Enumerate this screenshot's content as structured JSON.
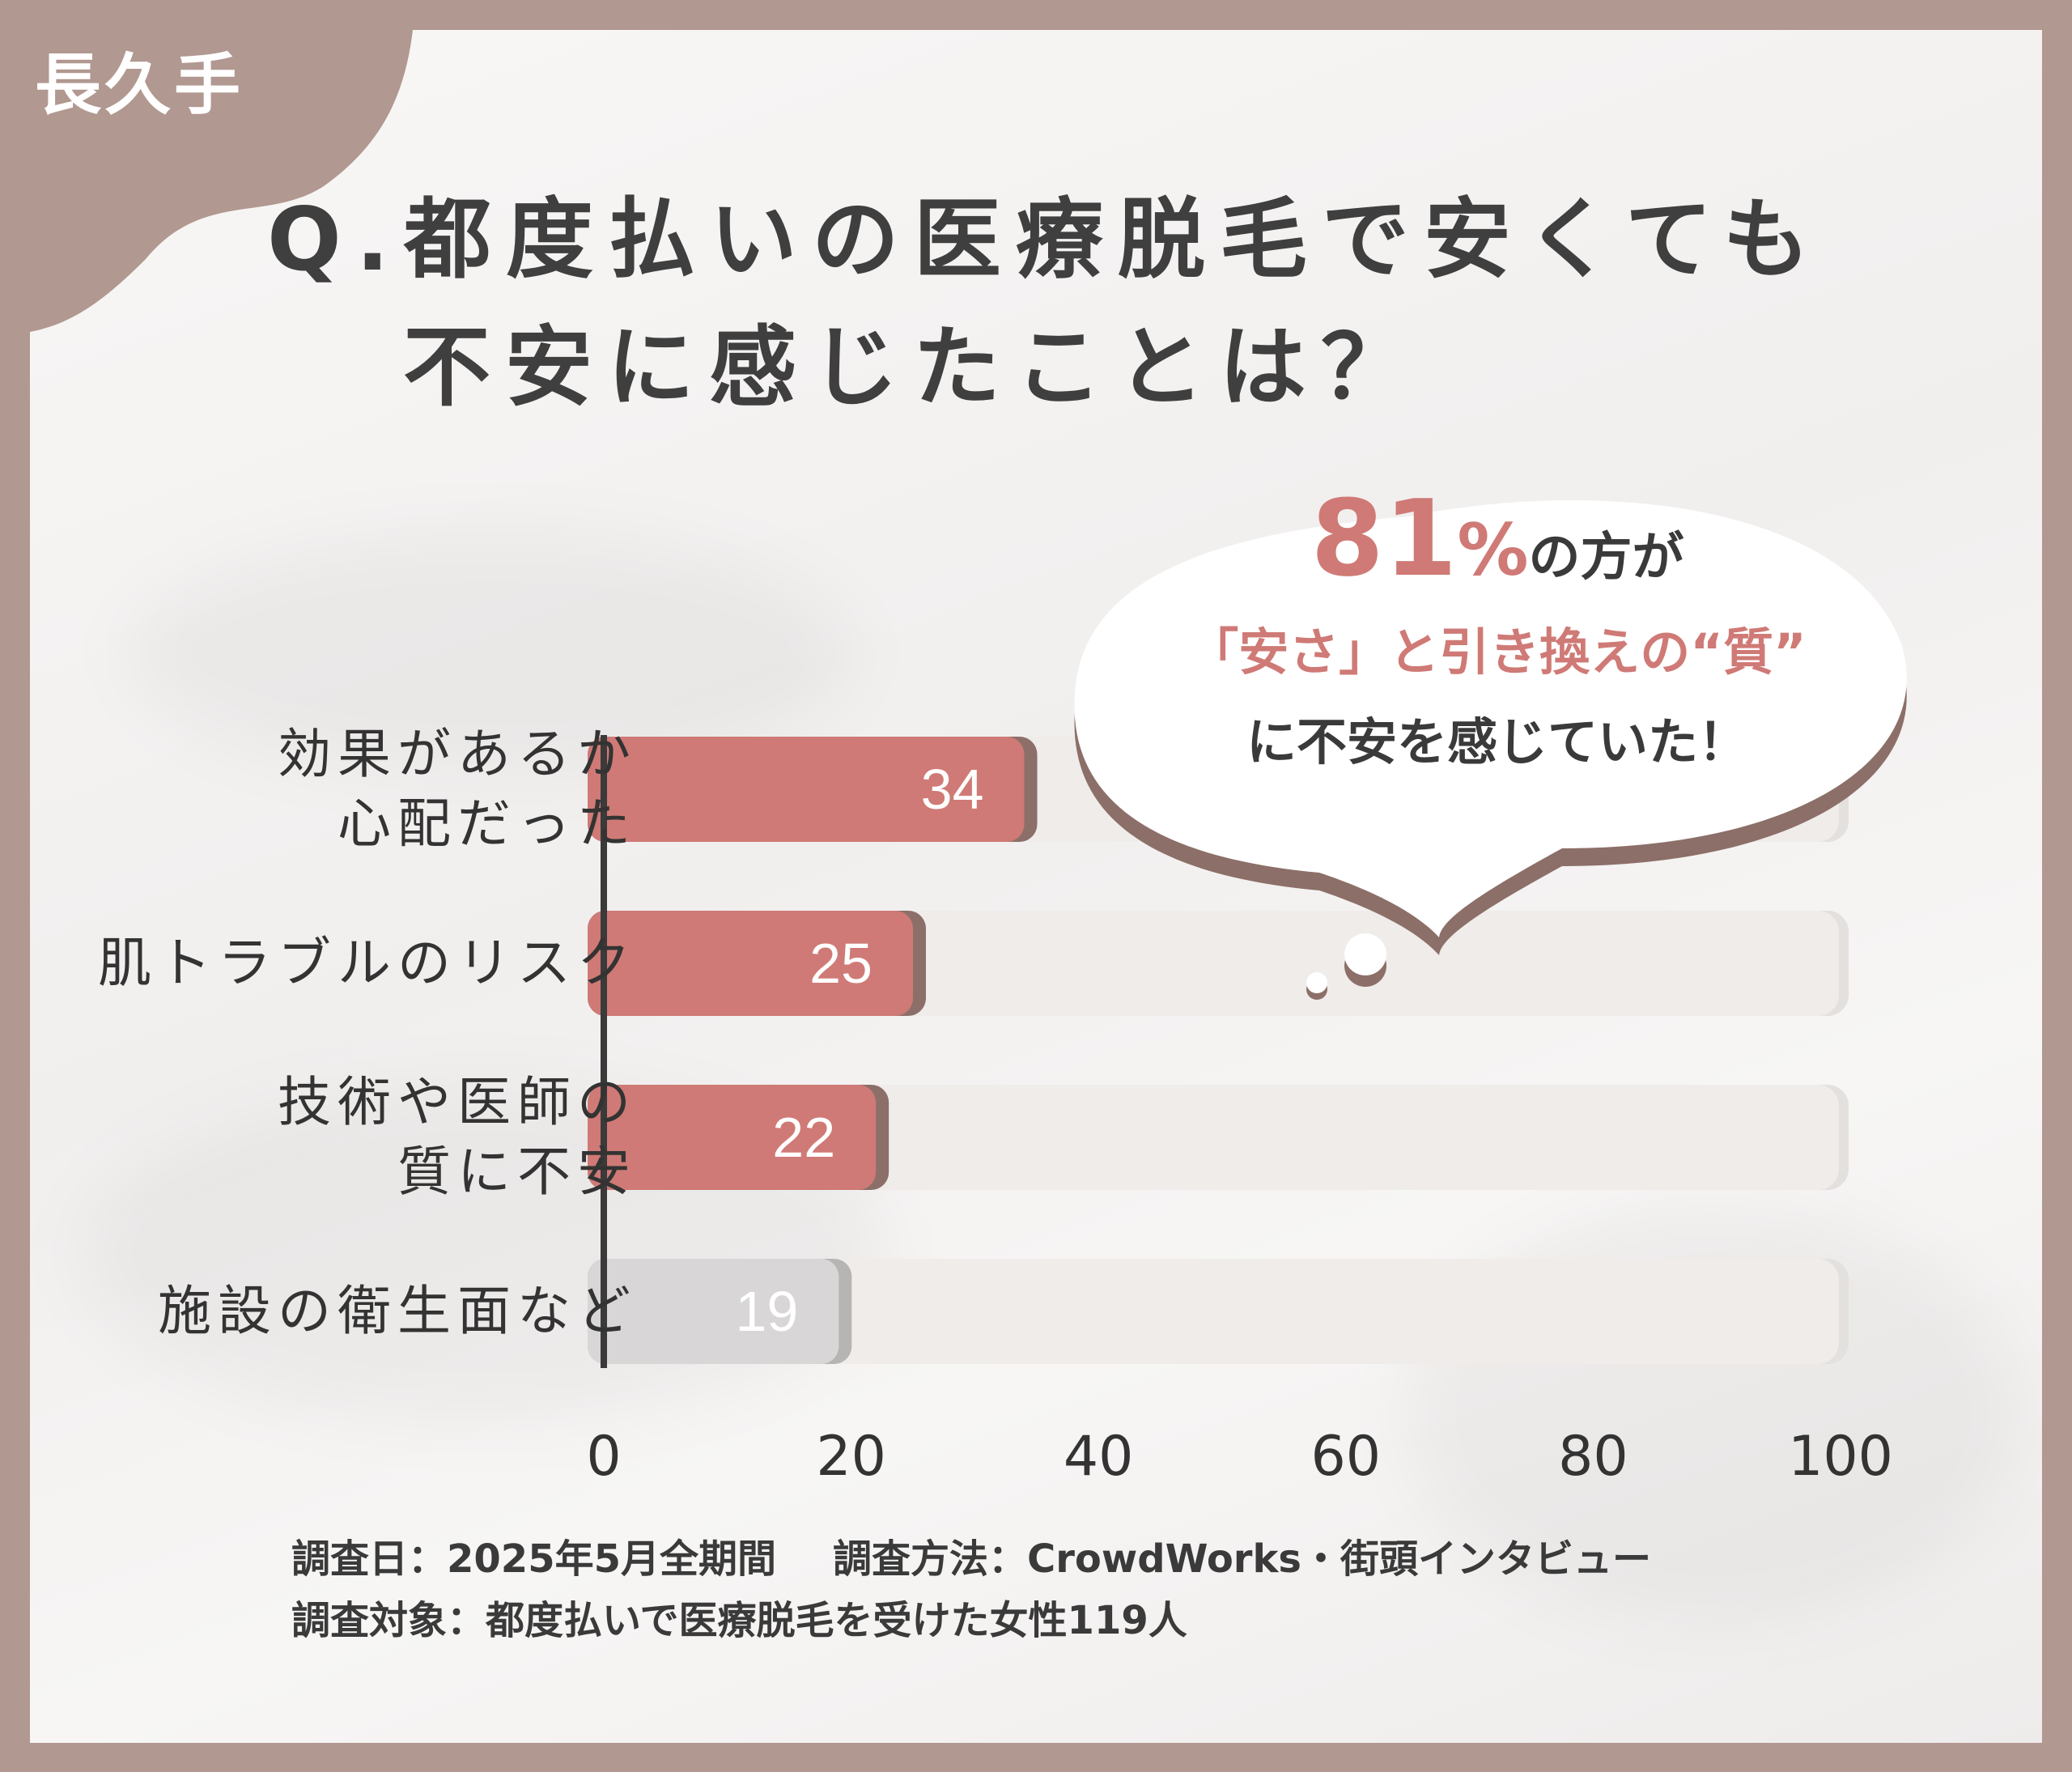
{
  "brand": "長久手",
  "title": {
    "line1": "Q.都度払いの医療脱毛で安くても",
    "line2": "不安に感じたことは？"
  },
  "callout": {
    "pct_number": "81",
    "pct_sign": "%",
    "line1_rest": "の方が",
    "line2": "「安さ」と引き換えの“質”",
    "line3": "に不安を感じていた！"
  },
  "colors": {
    "frame": "#b19890",
    "accent_bar": "#cf7a76",
    "bar_shadow": "#8c6f68",
    "gray_bar": "#d8d6d6",
    "track": "#efecea",
    "text": "#3f3f3f"
  },
  "chart_data": {
    "type": "bar",
    "orientation": "horizontal",
    "categories": [
      "効果があるか\n心配だった",
      "肌トラブルのリスク",
      "技術や医師の\n質に不安",
      "施設の衛生面など"
    ],
    "values": [
      34,
      25,
      22,
      19
    ],
    "value_labels": [
      "34",
      "25",
      "22",
      "19"
    ],
    "highlighted": [
      true,
      true,
      true,
      false
    ],
    "xlim": [
      0,
      100
    ],
    "xticks": [
      "0",
      "20",
      "40",
      "60",
      "80",
      "100"
    ],
    "grid": false
  },
  "footer": {
    "line1_a": "調査日：2025年5月全期間",
    "line1_b": "調査方法：CrowdWorks・街頭インタビュー",
    "line2": "調査対象：都度払いで医療脱毛を受けた女性119人"
  }
}
